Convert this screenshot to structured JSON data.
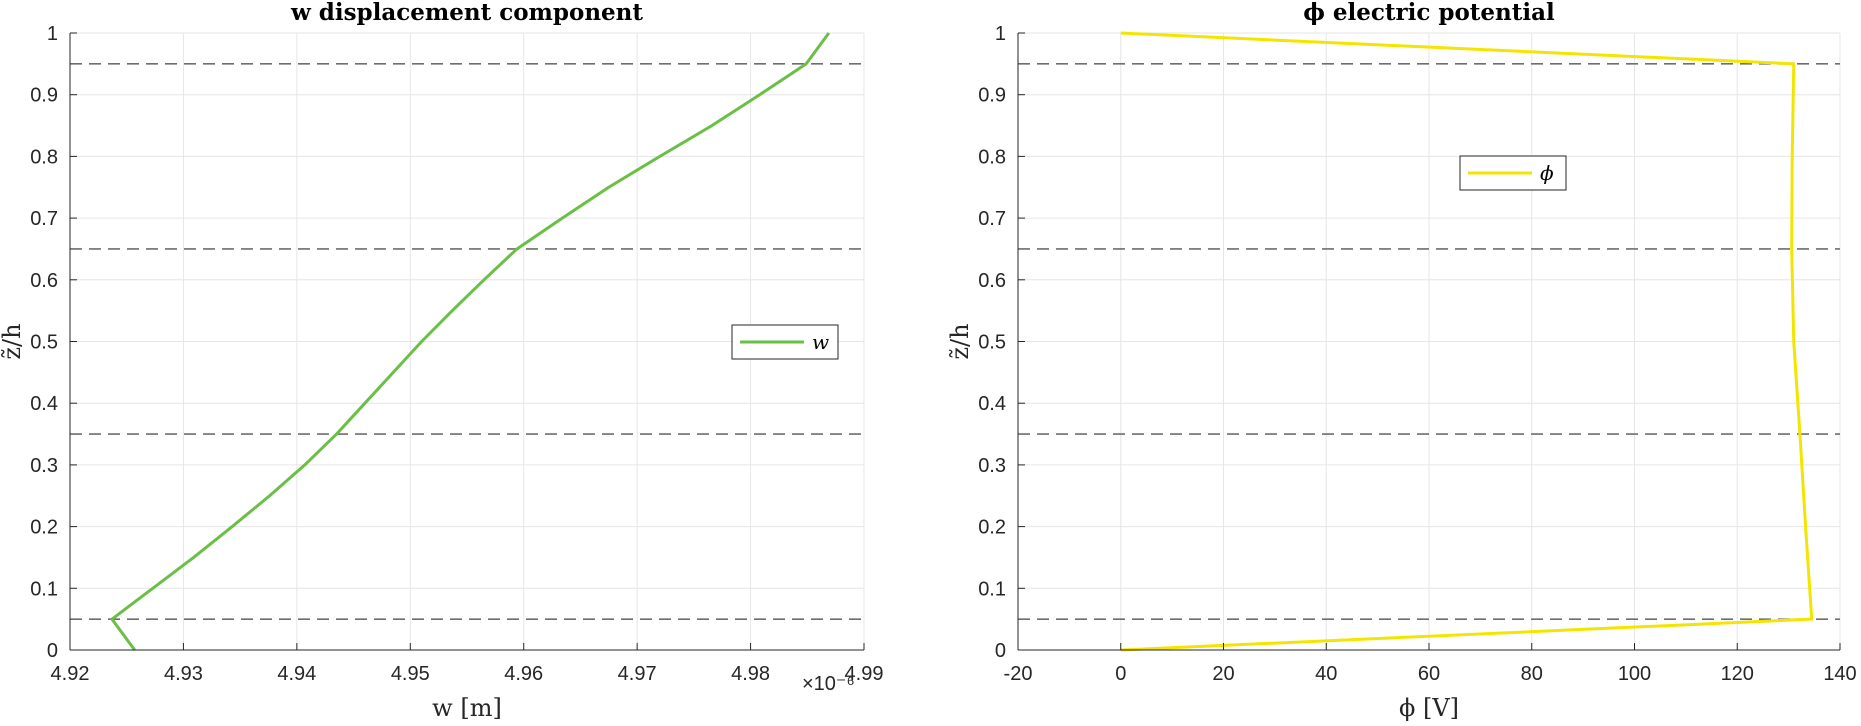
{
  "chart_data": [
    {
      "type": "line",
      "title": "w displacement component",
      "xlabel": "w [m]",
      "ylabel": "z̃/h",
      "xlim": [
        4.92e-06,
        4.99e-06
      ],
      "ylim": [
        0,
        1
      ],
      "x_ticks": [
        4.92e-06,
        4.93e-06,
        4.94e-06,
        4.95e-06,
        4.96e-06,
        4.97e-06,
        4.98e-06,
        4.99e-06
      ],
      "x_tick_labels": [
        "4.92",
        "4.93",
        "4.94",
        "4.95",
        "4.96",
        "4.97",
        "4.98",
        "4.99"
      ],
      "x_exponent_label": "×10⁻⁶",
      "y_ticks": [
        0,
        0.1,
        0.2,
        0.3,
        0.4,
        0.5,
        0.6,
        0.7,
        0.8,
        0.9,
        1
      ],
      "y_tick_labels": [
        "0",
        "0.1",
        "0.2",
        "0.3",
        "0.4",
        "0.5",
        "0.6",
        "0.7",
        "0.8",
        "0.9",
        "1"
      ],
      "grid": true,
      "legend_position": "center-right",
      "layer_interfaces": [
        0.05,
        0.35,
        0.65,
        0.95
      ],
      "series": [
        {
          "name": "w",
          "color": "#6abf45",
          "points": [
            [
              4.9257e-06,
              0
            ],
            [
              4.9237e-06,
              0.05
            ],
            [
              4.9273e-06,
              0.1
            ],
            [
              4.9309e-06,
              0.15
            ],
            [
              4.9343e-06,
              0.2
            ],
            [
              4.9376e-06,
              0.25
            ],
            [
              4.9407e-06,
              0.3
            ],
            [
              4.9435e-06,
              0.35
            ],
            [
              4.946e-06,
              0.4
            ],
            [
              4.9485e-06,
              0.45
            ],
            [
              4.951e-06,
              0.5
            ],
            [
              4.9537e-06,
              0.55
            ],
            [
              4.9565e-06,
              0.6
            ],
            [
              4.9594e-06,
              0.65
            ],
            [
              4.9634e-06,
              0.7
            ],
            [
              4.9675e-06,
              0.75
            ],
            [
              4.972e-06,
              0.8
            ],
            [
              4.9766e-06,
              0.85
            ],
            [
              4.9808e-06,
              0.9
            ],
            [
              4.9849e-06,
              0.95
            ],
            [
              4.9869e-06,
              1.0
            ]
          ]
        }
      ]
    },
    {
      "type": "line",
      "title": "ϕ electric potential",
      "xlabel": "ϕ [V]",
      "ylabel": "z̃/h",
      "xlim": [
        -20,
        140
      ],
      "ylim": [
        0,
        1
      ],
      "x_ticks": [
        -20,
        0,
        20,
        40,
        60,
        80,
        100,
        120,
        140
      ],
      "x_tick_labels": [
        "-20",
        "0",
        "20",
        "40",
        "60",
        "80",
        "100",
        "120",
        "140"
      ],
      "y_ticks": [
        0,
        0.1,
        0.2,
        0.3,
        0.4,
        0.5,
        0.6,
        0.7,
        0.8,
        0.9,
        1
      ],
      "y_tick_labels": [
        "0",
        "0.1",
        "0.2",
        "0.3",
        "0.4",
        "0.5",
        "0.6",
        "0.7",
        "0.8",
        "0.9",
        "1"
      ],
      "grid": true,
      "legend_position": "upper-center",
      "layer_interfaces": [
        0.05,
        0.35,
        0.65,
        0.95
      ],
      "series": [
        {
          "name": "ϕ",
          "color": "#f2e600",
          "points": [
            [
              0,
              0
            ],
            [
              134.5,
              0.05
            ],
            [
              133.3,
              0.2
            ],
            [
              132.2,
              0.35
            ],
            [
              131.0,
              0.5
            ],
            [
              130.6,
              0.65
            ],
            [
              130.7,
              0.8
            ],
            [
              131.0,
              0.95
            ],
            [
              0,
              1.0
            ]
          ]
        }
      ]
    }
  ]
}
